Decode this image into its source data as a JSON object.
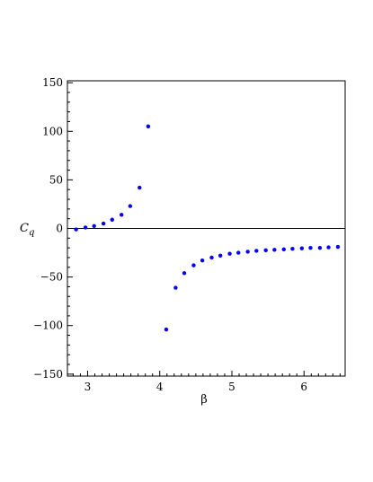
{
  "chart_data": {
    "type": "scatter",
    "xlabel": "β",
    "ylabel": {
      "main": "C",
      "sub": "q"
    },
    "xlim": [
      2.72,
      6.57
    ],
    "ylim": [
      -152,
      152
    ],
    "xticks": [
      3,
      4,
      5,
      6
    ],
    "yticks": [
      -150,
      -100,
      -50,
      0,
      50,
      100,
      150
    ],
    "xtick_labels": [
      "3",
      "4",
      "5",
      "6"
    ],
    "ytick_labels": [
      "−150",
      "−100",
      "−50",
      "0",
      "50",
      "100",
      "150"
    ],
    "zero_line": true,
    "grid": false,
    "legend": "none",
    "color": "#0000ff",
    "series": [
      {
        "x": [
          2.84,
          2.97,
          3.09,
          3.22,
          3.34,
          3.47,
          3.59,
          3.72,
          3.84,
          4.09,
          4.22,
          4.34,
          4.47,
          4.59,
          4.72,
          4.84,
          4.97,
          5.09,
          5.22,
          5.34,
          5.47,
          5.59,
          5.72,
          5.84,
          5.97,
          6.09,
          6.22,
          6.34,
          6.47
        ],
        "y": [
          -1,
          1,
          2.5,
          5,
          9,
          14,
          23,
          42,
          105,
          -104,
          -61,
          -46,
          -38,
          -33,
          -30,
          -28,
          -26,
          -25,
          -24,
          -23,
          -22.5,
          -22,
          -21.5,
          -21,
          -20.5,
          -20,
          -20,
          -19.5,
          -19
        ]
      }
    ]
  }
}
